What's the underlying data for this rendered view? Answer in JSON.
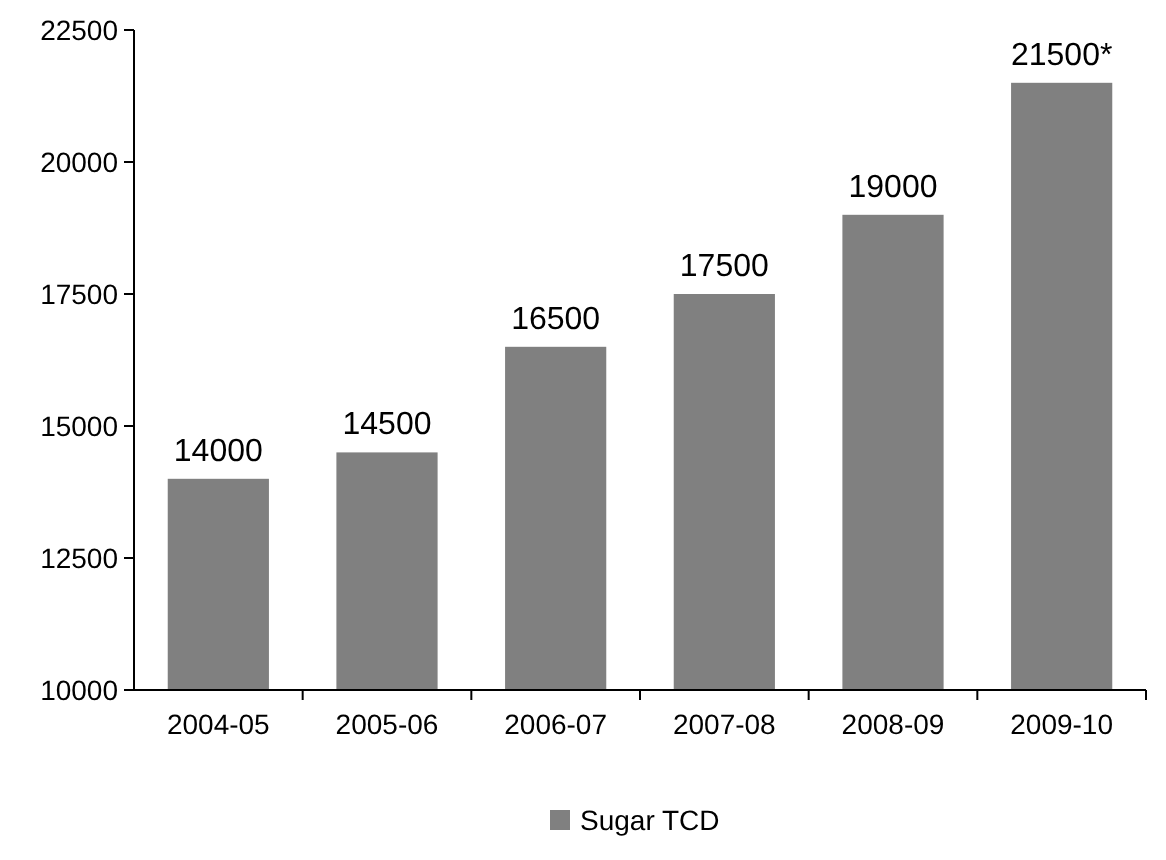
{
  "chart_data": {
    "type": "bar",
    "categories": [
      "2004-05",
      "2005-06",
      "2006-07",
      "2007-08",
      "2008-09",
      "2009-10"
    ],
    "series": [
      {
        "name": "Sugar TCD",
        "color": "#808080",
        "values": [
          14000,
          14500,
          16500,
          17500,
          19000,
          21500
        ]
      }
    ],
    "value_labels": [
      "14000",
      "14500",
      "16500",
      "17500",
      "19000",
      "21500*"
    ],
    "ylim": [
      10000,
      22500
    ],
    "yticks": [
      10000,
      12500,
      15000,
      17500,
      20000,
      22500
    ],
    "grid": false,
    "legend": "bottom"
  }
}
